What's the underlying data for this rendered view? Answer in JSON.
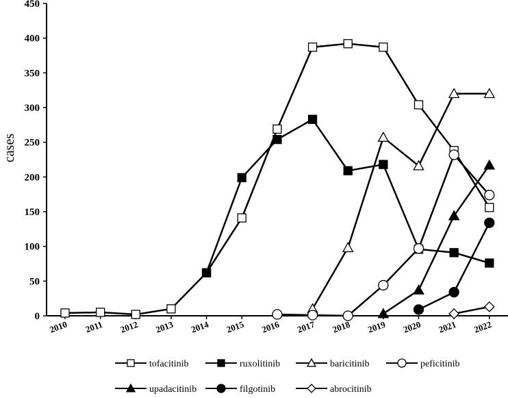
{
  "chart_data": {
    "type": "line",
    "ylabel": "cases",
    "ylim": [
      0,
      450
    ],
    "yticks": [
      0,
      50,
      100,
      150,
      200,
      250,
      300,
      350,
      400,
      450
    ],
    "categories": [
      "2010",
      "2011",
      "2012",
      "2013",
      "2014",
      "2015",
      "2016",
      "2017",
      "2018",
      "2019",
      "2020",
      "2021",
      "2022"
    ],
    "grid": false,
    "legend_position": "bottom",
    "series": [
      {
        "name": "tofacitinib",
        "marker": "square-open",
        "values": [
          4,
          5,
          2,
          10,
          62,
          141,
          269,
          387,
          392,
          387,
          304,
          238,
          156
        ]
      },
      {
        "name": "ruxolitinib",
        "marker": "square-filled",
        "values": [
          null,
          null,
          null,
          null,
          62,
          199,
          254,
          283,
          209,
          218,
          96,
          91,
          76
        ]
      },
      {
        "name": "baricitinib",
        "marker": "triangle-open",
        "values": [
          null,
          null,
          null,
          null,
          null,
          null,
          null,
          10,
          98,
          257,
          216,
          320,
          320
        ]
      },
      {
        "name": "peficitinib",
        "marker": "circle-open",
        "values": [
          null,
          null,
          null,
          null,
          null,
          null,
          2,
          1,
          0,
          44,
          97,
          232,
          174
        ]
      },
      {
        "name": "upadacitinib",
        "marker": "triangle-filled",
        "values": [
          null,
          null,
          null,
          null,
          null,
          null,
          null,
          null,
          null,
          3,
          37,
          144,
          217
        ]
      },
      {
        "name": "filgotinib",
        "marker": "circle-filled",
        "values": [
          null,
          null,
          null,
          null,
          null,
          null,
          null,
          null,
          null,
          null,
          9,
          34,
          134
        ]
      },
      {
        "name": "abrocitinib",
        "marker": "diamond-open",
        "values": [
          null,
          null,
          null,
          null,
          null,
          null,
          null,
          null,
          null,
          null,
          null,
          3,
          13
        ]
      }
    ]
  }
}
